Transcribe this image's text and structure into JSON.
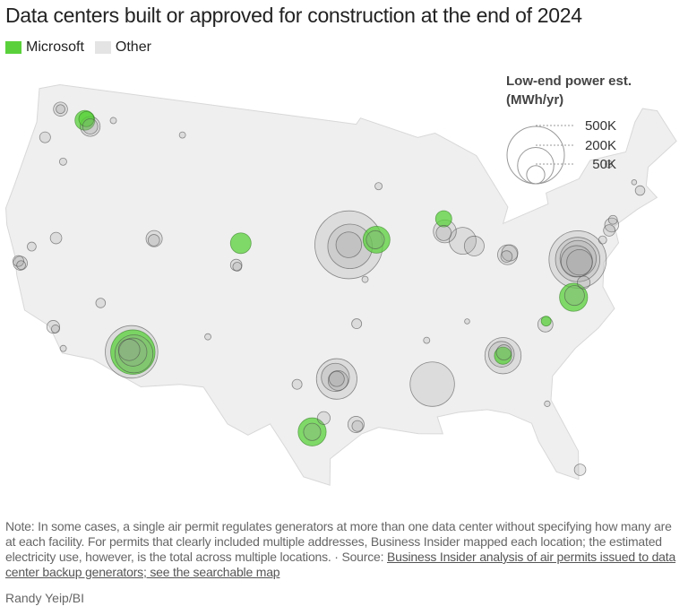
{
  "title": "Data centers built or approved for construction at the end of 2024",
  "legend": {
    "items": [
      {
        "label": "Microsoft",
        "color": "#5ad13b"
      },
      {
        "label": "Other",
        "color": "#e4e4e4"
      }
    ],
    "size_title_line1": "Low-end power est.",
    "size_title_line2": "(MWh/yr)",
    "sizes": [
      {
        "label": "500K",
        "value": 500000
      },
      {
        "label": "200K",
        "value": 200000
      },
      {
        "label": "50K",
        "value": 50000
      }
    ]
  },
  "colors": {
    "land": "#efefef",
    "microsoft_fill": "#5ad13b",
    "microsoft_stroke": "#2d7a1c",
    "other_fill": "#9a9a9a",
    "other_stroke": "#4a4a4a"
  },
  "bubbles": [
    {
      "lat": 47.2,
      "lon": -119.9,
      "mwh": 60000,
      "owner": "Microsoft"
    },
    {
      "lat": 47.3,
      "lon": -119.8,
      "mwh": 35000,
      "owner": "Microsoft"
    },
    {
      "lat": 46.9,
      "lon": -119.3,
      "mwh": 60000,
      "owner": "Other"
    },
    {
      "lat": 46.9,
      "lon": -119.3,
      "mwh": 35000,
      "owner": "Other"
    },
    {
      "lat": 47.5,
      "lon": -122.3,
      "mwh": 30000,
      "owner": "Other"
    },
    {
      "lat": 47.5,
      "lon": -122.3,
      "mwh": 12000,
      "owner": "Other"
    },
    {
      "lat": 47.6,
      "lon": -117.4,
      "mwh": 6000,
      "owner": "Other"
    },
    {
      "lat": 45.5,
      "lon": -122.9,
      "mwh": 18000,
      "owner": "Other"
    },
    {
      "lat": 44.3,
      "lon": -120.8,
      "mwh": 8000,
      "owner": "Other"
    },
    {
      "lat": 37.4,
      "lon": -121.9,
      "mwh": 30000,
      "owner": "Other"
    },
    {
      "lat": 37.5,
      "lon": -122.1,
      "mwh": 18000,
      "owner": "Other"
    },
    {
      "lat": 37.3,
      "lon": -121.8,
      "mwh": 12000,
      "owner": "Other"
    },
    {
      "lat": 38.6,
      "lon": -121.4,
      "mwh": 12000,
      "owner": "Other"
    },
    {
      "lat": 39.5,
      "lon": -119.7,
      "mwh": 20000,
      "owner": "Other"
    },
    {
      "lat": 34.0,
      "lon": -118.2,
      "mwh": 25000,
      "owner": "Other"
    },
    {
      "lat": 33.9,
      "lon": -118.0,
      "mwh": 10000,
      "owner": "Other"
    },
    {
      "lat": 32.8,
      "lon": -117.1,
      "mwh": 6000,
      "owner": "Other"
    },
    {
      "lat": 36.1,
      "lon": -115.1,
      "mwh": 14000,
      "owner": "Other"
    },
    {
      "lat": 33.4,
      "lon": -112.1,
      "mwh": 420000,
      "owner": "Other"
    },
    {
      "lat": 33.3,
      "lon": -111.9,
      "mwh": 220000,
      "owner": "Other"
    },
    {
      "lat": 33.4,
      "lon": -112.0,
      "mwh": 300000,
      "owner": "Microsoft"
    },
    {
      "lat": 33.4,
      "lon": -112.0,
      "mwh": 120000,
      "owner": "Other"
    },
    {
      "lat": 33.5,
      "lon": -112.3,
      "mwh": 70000,
      "owner": "Other"
    },
    {
      "lat": 40.7,
      "lon": -111.9,
      "mwh": 40000,
      "owner": "Other"
    },
    {
      "lat": 40.6,
      "lon": -111.9,
      "mwh": 20000,
      "owner": "Other"
    },
    {
      "lat": 41.1,
      "lon": -104.8,
      "mwh": 65000,
      "owner": "Microsoft"
    },
    {
      "lat": 39.7,
      "lon": -105.0,
      "mwh": 20000,
      "owner": "Other"
    },
    {
      "lat": 39.6,
      "lon": -104.9,
      "mwh": 12000,
      "owner": "Other"
    },
    {
      "lat": 35.0,
      "lon": -106.6,
      "mwh": 6000,
      "owner": "Other"
    },
    {
      "lat": 41.3,
      "lon": -95.9,
      "mwh": 700000,
      "owner": "Other"
    },
    {
      "lat": 41.2,
      "lon": -95.8,
      "mwh": 300000,
      "owner": "Other"
    },
    {
      "lat": 41.3,
      "lon": -95.9,
      "mwh": 100000,
      "owner": "Other"
    },
    {
      "lat": 41.6,
      "lon": -93.6,
      "mwh": 110000,
      "owner": "Microsoft"
    },
    {
      "lat": 41.6,
      "lon": -93.7,
      "mwh": 50000,
      "owner": "Other"
    },
    {
      "lat": 39.1,
      "lon": -94.6,
      "mwh": 6000,
      "owner": "Other"
    },
    {
      "lat": 45.0,
      "lon": -93.3,
      "mwh": 8000,
      "owner": "Other"
    },
    {
      "lat": 42.7,
      "lon": -87.9,
      "mwh": 40000,
      "owner": "Microsoft"
    },
    {
      "lat": 41.9,
      "lon": -87.9,
      "mwh": 80000,
      "owner": "Other"
    },
    {
      "lat": 41.8,
      "lon": -88.0,
      "mwh": 35000,
      "owner": "Other"
    },
    {
      "lat": 41.2,
      "lon": -86.5,
      "mwh": 110000,
      "owner": "Other"
    },
    {
      "lat": 40.8,
      "lon": -85.6,
      "mwh": 60000,
      "owner": "Other"
    },
    {
      "lat": 40.0,
      "lon": -83.0,
      "mwh": 60000,
      "owner": "Other"
    },
    {
      "lat": 40.1,
      "lon": -82.8,
      "mwh": 40000,
      "owner": "Other"
    },
    {
      "lat": 39.9,
      "lon": -83.1,
      "mwh": 20000,
      "owner": "Other"
    },
    {
      "lat": 39.0,
      "lon": -77.5,
      "mwh": 500000,
      "owner": "Other"
    },
    {
      "lat": 39.0,
      "lon": -77.5,
      "mwh": 300000,
      "owner": "Other"
    },
    {
      "lat": 39.05,
      "lon": -77.45,
      "mwh": 200000,
      "owner": "Other"
    },
    {
      "lat": 38.9,
      "lon": -77.6,
      "mwh": 150000,
      "owner": "Other"
    },
    {
      "lat": 38.8,
      "lon": -77.4,
      "mwh": 100000,
      "owner": "Other"
    },
    {
      "lat": 36.7,
      "lon": -78.4,
      "mwh": 120000,
      "owner": "Microsoft"
    },
    {
      "lat": 36.8,
      "lon": -78.3,
      "mwh": 60000,
      "owner": "Other"
    },
    {
      "lat": 37.5,
      "lon": -77.4,
      "mwh": 25000,
      "owner": "Other"
    },
    {
      "lat": 35.5,
      "lon": -80.8,
      "mwh": 15000,
      "owner": "Microsoft"
    },
    {
      "lat": 35.3,
      "lon": -80.9,
      "mwh": 35000,
      "owner": "Other"
    },
    {
      "lat": 40.7,
      "lon": -74.2,
      "mwh": 30000,
      "owner": "Other"
    },
    {
      "lat": 40.4,
      "lon": -74.5,
      "mwh": 20000,
      "owner": "Other"
    },
    {
      "lat": 41.0,
      "lon": -74.0,
      "mwh": 12000,
      "owner": "Other"
    },
    {
      "lat": 39.9,
      "lon": -75.2,
      "mwh": 10000,
      "owner": "Other"
    },
    {
      "lat": 42.4,
      "lon": -71.2,
      "mwh": 14000,
      "owner": "Other"
    },
    {
      "lat": 43.0,
      "lon": -71.5,
      "mwh": 4000,
      "owner": "Other"
    },
    {
      "lat": 44.5,
      "lon": -73.2,
      "mwh": 8000,
      "owner": "Other"
    },
    {
      "lat": 33.7,
      "lon": -84.4,
      "mwh": 200000,
      "owner": "Other"
    },
    {
      "lat": 33.8,
      "lon": -84.5,
      "mwh": 100000,
      "owner": "Other"
    },
    {
      "lat": 33.7,
      "lon": -84.4,
      "mwh": 45000,
      "owner": "Microsoft"
    },
    {
      "lat": 33.9,
      "lon": -84.3,
      "mwh": 35000,
      "owner": "Other"
    },
    {
      "lat": 32.3,
      "lon": -89.8,
      "mwh": 300000,
      "owner": "Other"
    },
    {
      "lat": 32.8,
      "lon": -96.8,
      "mwh": 250000,
      "owner": "Other"
    },
    {
      "lat": 32.9,
      "lon": -96.9,
      "mwh": 120000,
      "owner": "Other"
    },
    {
      "lat": 32.7,
      "lon": -96.7,
      "mwh": 60000,
      "owner": "Other"
    },
    {
      "lat": 32.8,
      "lon": -96.8,
      "mwh": 35000,
      "owner": "Other"
    },
    {
      "lat": 29.4,
      "lon": -98.5,
      "mwh": 120000,
      "owner": "Microsoft"
    },
    {
      "lat": 29.4,
      "lon": -98.5,
      "mwh": 45000,
      "owner": "Other"
    },
    {
      "lat": 29.9,
      "lon": -95.4,
      "mwh": 40000,
      "owner": "Other"
    },
    {
      "lat": 29.8,
      "lon": -95.3,
      "mwh": 18000,
      "owner": "Other"
    },
    {
      "lat": 30.3,
      "lon": -97.7,
      "mwh": 25000,
      "owner": "Other"
    },
    {
      "lat": 32.4,
      "lon": -99.7,
      "mwh": 15000,
      "owner": "Other"
    },
    {
      "lat": 36.3,
      "lon": -95.3,
      "mwh": 15000,
      "owner": "Other"
    },
    {
      "lat": 35.1,
      "lon": -90.0,
      "mwh": 6000,
      "owner": "Other"
    },
    {
      "lat": 36.1,
      "lon": -86.8,
      "mwh": 4000,
      "owner": "Other"
    },
    {
      "lat": 25.8,
      "lon": -80.2,
      "mwh": 20000,
      "owner": "Other"
    },
    {
      "lat": 30.3,
      "lon": -81.7,
      "mwh": 5000,
      "owner": "Other"
    },
    {
      "lat": 47.5,
      "lon": -111.0,
      "mwh": 6000,
      "owner": "Other"
    }
  ],
  "note_text": "Note: In some cases, a single air permit regulates generators at more than one data center without specifying how many are at each facility. For permits that clearly included multiple addresses, Business Insider mapped each location; the estimated electricity use, however, is the total across multiple locations. · Source: ",
  "source_link": "Business Insider analysis of air permits issued to data center backup generators; see the searchable map",
  "credit": "Randy Yeip/BI"
}
